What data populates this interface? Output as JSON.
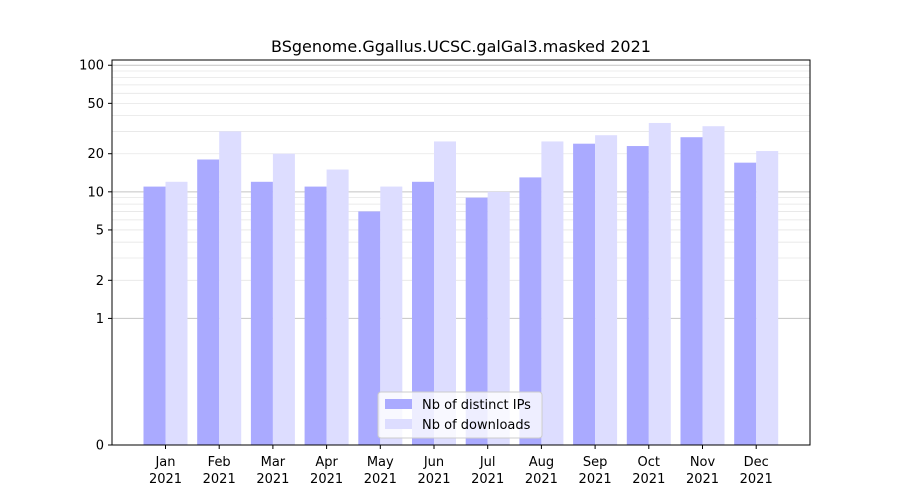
{
  "chart_data": {
    "type": "bar",
    "title": "BSgenome.Ggallus.UCSC.galGal3.masked 2021",
    "xlabel": "",
    "ylabel": "",
    "yscale": "symlog",
    "ylim": [
      0,
      110
    ],
    "yticks": [
      0,
      1,
      2,
      5,
      10,
      20,
      50,
      100
    ],
    "categories": [
      "Jan\n2021",
      "Feb\n2021",
      "Mar\n2021",
      "Apr\n2021",
      "May\n2021",
      "Jun\n2021",
      "Jul\n2021",
      "Aug\n2021",
      "Sep\n2021",
      "Oct\n2021",
      "Nov\n2021",
      "Dec\n2021"
    ],
    "series": [
      {
        "name": "Nb of distinct IPs",
        "color": "#aaaaff",
        "values": [
          11,
          18,
          12,
          11,
          7,
          12,
          9,
          13,
          24,
          23,
          27,
          17
        ]
      },
      {
        "name": "Nb of downloads",
        "color": "#ddddff",
        "values": [
          12,
          30,
          20,
          15,
          11,
          25,
          10,
          25,
          28,
          35,
          33,
          21
        ]
      }
    ],
    "grid": true,
    "legend_position": "lower center"
  }
}
